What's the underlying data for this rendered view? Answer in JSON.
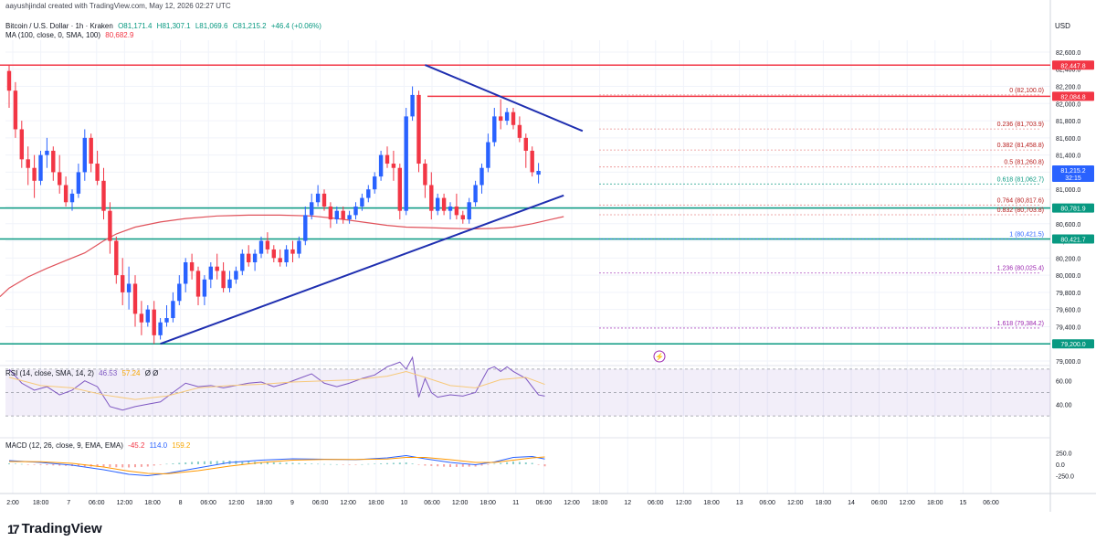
{
  "header": {
    "author_line": "aayushjindal created with TradingView.com, May 12, 2026 02:27 UTC",
    "symbol": "Bitcoin / U.S. Dollar · 1h · Kraken",
    "ohlc": {
      "o": "O81,171.4",
      "h": "H81,307.1",
      "l": "L81,069.6",
      "c": "C81,215.2",
      "chg": "+46.4 (+0.06%)"
    },
    "ma_label": "MA (100, close, 0, SMA, 100)",
    "ma_value": "80,682.9",
    "currency": "USD"
  },
  "indicators": {
    "rsi_label": "RSI (14, close, SMA, 14, 2)",
    "rsi_value": "46.53",
    "rsi_ma": "57.24",
    "rsi_extra": "Ø Ø",
    "macd_label": "MACD (12, 26, close, 9, EMA, EMA)",
    "macd_hist": "-45.2",
    "macd_line": "114.0",
    "macd_signal": "159.2"
  },
  "branding": {
    "logo_text": "TradingView",
    "logo_mark": "17"
  },
  "colors": {
    "bull": "#2962ff",
    "bear": "#f23645",
    "resistance": "#f23645",
    "support": "#089981",
    "trendline": "#1f2fb0",
    "ma": "#e0525b",
    "rsi": "#7e57c2",
    "rsi_ma": "#f7c97a",
    "macd": "#2962ff",
    "signal": "#ff9800",
    "fib": "#9c27b0"
  },
  "chart_data": {
    "type": "candlestick",
    "symbol": "BTCUSD",
    "timeframe": "1h",
    "price_axis": {
      "ticks": [
        79000,
        79200,
        79400,
        79600,
        79800,
        80000,
        80200,
        80400,
        80600,
        80800,
        81000,
        81200,
        81400,
        81600,
        81800,
        82000,
        82200,
        82400,
        82600
      ],
      "labels": [
        "79,000.0",
        "79,200.0",
        "79,400.0",
        "79,600.0",
        "79,800.0",
        "80,000.0",
        "80,200.0",
        "80,400.0",
        "80,600.0",
        "80,800.0",
        "81,000.0",
        "81,200.0",
        "81,400.0",
        "81,600.0",
        "81,800.0",
        "82,000.0",
        "82,200.0",
        "82,400.0",
        "82,600.0"
      ]
    },
    "time_axis": [
      "2:00",
      "18:00",
      "7",
      "06:00",
      "12:00",
      "18:00",
      "8",
      "06:00",
      "12:00",
      "18:00",
      "9",
      "06:00",
      "12:00",
      "18:00",
      "10",
      "06:00",
      "12:00",
      "18:00",
      "11",
      "06:00",
      "12:00",
      "18:00",
      "12",
      "06:00",
      "12:00",
      "18:00",
      "13",
      "06:00",
      "12:00",
      "18:00",
      "14",
      "06:00",
      "12:00",
      "18:00",
      "15",
      "06:00"
    ],
    "horizontal_levels": [
      {
        "label": "82,447.8",
        "value": 82447.8,
        "type": "resistance"
      },
      {
        "label": "82,084.8",
        "value": 82084.8,
        "type": "resistance"
      },
      {
        "label": "80,781.9",
        "value": 80781.9,
        "type": "support"
      },
      {
        "label": "80,421.7",
        "value": 80421.7,
        "type": "support"
      },
      {
        "label": "79,200.0",
        "value": 79200.0,
        "type": "support"
      }
    ],
    "last_price": {
      "value": 81215.2,
      "label": "81,215.2",
      "countdown": "32:15"
    },
    "fib_levels": [
      {
        "ratio": "0",
        "value": 82100.0,
        "label": "0 (82,100.0)"
      },
      {
        "ratio": "0.236",
        "value": 81703.9,
        "label": "0.236 (81,703.9)"
      },
      {
        "ratio": "0.382",
        "value": 81458.8,
        "label": "0.382 (81,458.8)"
      },
      {
        "ratio": "0.5",
        "value": 81260.8,
        "label": "0.5 (81,260.8)"
      },
      {
        "ratio": "0.618",
        "value": 81062.7,
        "label": "0.618 (81,062.7)"
      },
      {
        "ratio": "0.764",
        "value": 80817.6,
        "label": "0.764 (80,817.6)"
      },
      {
        "ratio": "0.832",
        "value": 80703.8,
        "label": "0.832 (80,703.8)"
      },
      {
        "ratio": "1",
        "value": 80421.5,
        "label": "1 (80,421.5)"
      },
      {
        "ratio": "1.236",
        "value": 80025.4,
        "label": "1.236 (80,025.4)"
      },
      {
        "ratio": "1.618",
        "value": 79384.2,
        "label": "1.618 (79,384.2)"
      }
    ],
    "trendlines": [
      {
        "name": "descending",
        "from": {
          "bar": 66,
          "price": 82450
        },
        "to": {
          "bar": 91,
          "price": 81680
        }
      },
      {
        "name": "ascending",
        "from": {
          "bar": 24,
          "price": 79200
        },
        "to": {
          "bar": 88,
          "price": 80930
        }
      }
    ],
    "candles": [
      [
        82380,
        82450,
        81950,
        82150
      ],
      [
        82150,
        82250,
        81600,
        81700
      ],
      [
        81700,
        81800,
        81250,
        81350
      ],
      [
        81350,
        81500,
        81050,
        81250
      ],
      [
        81250,
        81400,
        80900,
        81100
      ],
      [
        81100,
        81450,
        81050,
        81400
      ],
      [
        81400,
        81600,
        81250,
        81450
      ],
      [
        81450,
        81500,
        81100,
        81200
      ],
      [
        81200,
        81400,
        80950,
        81050
      ],
      [
        81050,
        81150,
        80800,
        80850
      ],
      [
        80850,
        81000,
        80750,
        80950
      ],
      [
        80950,
        81300,
        80900,
        81200
      ],
      [
        81200,
        81700,
        81100,
        81600
      ],
      [
        81600,
        81650,
        81200,
        81300
      ],
      [
        81300,
        81450,
        81050,
        81100
      ],
      [
        81100,
        81250,
        80650,
        80750
      ],
      [
        80750,
        80850,
        80250,
        80400
      ],
      [
        80400,
        80450,
        79900,
        80000
      ],
      [
        80000,
        80200,
        79650,
        79800
      ],
      [
        79800,
        80100,
        79600,
        79900
      ],
      [
        79900,
        80000,
        79400,
        79550
      ],
      [
        79550,
        79700,
        79300,
        79450
      ],
      [
        79450,
        79650,
        79400,
        79600
      ],
      [
        79600,
        79700,
        79200,
        79300
      ],
      [
        79300,
        79500,
        79250,
        79450
      ],
      [
        79450,
        79650,
        79400,
        79500
      ],
      [
        79500,
        79800,
        79450,
        79700
      ],
      [
        79700,
        80000,
        79650,
        79900
      ],
      [
        79900,
        80200,
        79800,
        80150
      ],
      [
        80150,
        80250,
        79950,
        80050
      ],
      [
        80050,
        80100,
        79650,
        79750
      ],
      [
        79750,
        80000,
        79650,
        79950
      ],
      [
        79950,
        80150,
        79850,
        80100
      ],
      [
        80100,
        80250,
        79950,
        80050
      ],
      [
        80050,
        80150,
        79800,
        79850
      ],
      [
        79850,
        80050,
        79800,
        79950
      ],
      [
        79950,
        80100,
        79900,
        80050
      ],
      [
        80050,
        80300,
        80000,
        80250
      ],
      [
        80250,
        80350,
        80100,
        80150
      ],
      [
        80150,
        80300,
        80050,
        80250
      ],
      [
        80250,
        80450,
        80200,
        80400
      ],
      [
        80400,
        80500,
        80250,
        80300
      ],
      [
        80300,
        80350,
        80150,
        80200
      ],
      [
        80200,
        80300,
        80100,
        80150
      ],
      [
        80150,
        80350,
        80100,
        80300
      ],
      [
        80300,
        80400,
        80150,
        80250
      ],
      [
        80250,
        80450,
        80200,
        80400
      ],
      [
        80400,
        80800,
        80350,
        80700
      ],
      [
        80700,
        80950,
        80650,
        80850
      ],
      [
        80850,
        81050,
        80800,
        80950
      ],
      [
        80950,
        81000,
        80750,
        80800
      ],
      [
        80800,
        80850,
        80550,
        80650
      ],
      [
        80650,
        80800,
        80600,
        80750
      ],
      [
        80750,
        80800,
        80600,
        80650
      ],
      [
        80650,
        80750,
        80600,
        80700
      ],
      [
        80700,
        80850,
        80650,
        80800
      ],
      [
        80800,
        80950,
        80750,
        80900
      ],
      [
        80900,
        81050,
        80850,
        81000
      ],
      [
        81000,
        81200,
        80950,
        81150
      ],
      [
        81150,
        81450,
        81100,
        81400
      ],
      [
        81400,
        81500,
        81250,
        81300
      ],
      [
        81300,
        81450,
        81100,
        81250
      ],
      [
        81250,
        81300,
        80650,
        80750
      ],
      [
        80750,
        81950,
        80700,
        81850
      ],
      [
        81850,
        82200,
        81800,
        82100
      ],
      [
        82100,
        82150,
        81200,
        81300
      ],
      [
        81300,
        81350,
        80900,
        81050
      ],
      [
        81050,
        81200,
        80650,
        80750
      ],
      [
        80750,
        80950,
        80700,
        80900
      ],
      [
        80900,
        80950,
        80700,
        80750
      ],
      [
        80750,
        80850,
        80650,
        80800
      ],
      [
        80800,
        80950,
        80650,
        80700
      ],
      [
        80700,
        80750,
        80600,
        80650
      ],
      [
        80650,
        80900,
        80600,
        80850
      ],
      [
        80850,
        81100,
        80800,
        81050
      ],
      [
        81050,
        81300,
        80950,
        81250
      ],
      [
        81250,
        81650,
        81200,
        81550
      ],
      [
        81550,
        81950,
        81500,
        81850
      ],
      [
        81850,
        82050,
        81700,
        81800
      ],
      [
        81800,
        81950,
        81750,
        81900
      ],
      [
        81900,
        81950,
        81700,
        81750
      ],
      [
        81750,
        81850,
        81550,
        81600
      ],
      [
        81600,
        81650,
        81250,
        81450
      ],
      [
        81450,
        81500,
        81150,
        81200
      ],
      [
        81171.4,
        81307.1,
        81069.6,
        81215.2
      ]
    ],
    "ma100": [
      [
        0,
        79850
      ],
      [
        3,
        79980
      ],
      [
        6,
        80080
      ],
      [
        9,
        80170
      ],
      [
        12,
        80260
      ],
      [
        15,
        80400
      ],
      [
        17,
        80480
      ],
      [
        20,
        80560
      ],
      [
        24,
        80620
      ],
      [
        28,
        80660
      ],
      [
        33,
        80690
      ],
      [
        38,
        80700
      ],
      [
        43,
        80700
      ],
      [
        48,
        80690
      ],
      [
        52,
        80660
      ],
      [
        56,
        80620
      ],
      [
        60,
        80580
      ],
      [
        63,
        80560
      ],
      [
        66,
        80555
      ],
      [
        70,
        80545
      ],
      [
        74,
        80540
      ],
      [
        77,
        80545
      ],
      [
        80,
        80560
      ],
      [
        83,
        80600
      ],
      [
        86,
        80650
      ],
      [
        88,
        80683
      ]
    ],
    "rsi": {
      "ticks": [
        40,
        60
      ],
      "upper": 70,
      "lower": 30,
      "value": 46.53,
      "ma": 57.24,
      "series": [
        [
          0,
          70
        ],
        [
          2,
          58
        ],
        [
          4,
          52
        ],
        [
          6,
          55
        ],
        [
          8,
          48
        ],
        [
          10,
          52
        ],
        [
          12,
          60
        ],
        [
          14,
          55
        ],
        [
          16,
          38
        ],
        [
          18,
          35
        ],
        [
          20,
          38
        ],
        [
          22,
          40
        ],
        [
          24,
          42
        ],
        [
          26,
          50
        ],
        [
          28,
          58
        ],
        [
          30,
          55
        ],
        [
          32,
          56
        ],
        [
          34,
          54
        ],
        [
          36,
          56
        ],
        [
          38,
          58
        ],
        [
          40,
          59
        ],
        [
          42,
          55
        ],
        [
          44,
          58
        ],
        [
          46,
          62
        ],
        [
          48,
          66
        ],
        [
          50,
          58
        ],
        [
          52,
          55
        ],
        [
          54,
          58
        ],
        [
          56,
          62
        ],
        [
          58,
          65
        ],
        [
          60,
          72
        ],
        [
          62,
          76
        ],
        [
          63,
          70
        ],
        [
          64,
          80
        ],
        [
          65,
          46
        ],
        [
          66,
          62
        ],
        [
          67,
          50
        ],
        [
          68,
          46
        ],
        [
          70,
          48
        ],
        [
          72,
          47
        ],
        [
          74,
          50
        ],
        [
          76,
          70
        ],
        [
          77,
          72
        ],
        [
          78,
          68
        ],
        [
          79,
          72
        ],
        [
          80,
          68
        ],
        [
          82,
          62
        ],
        [
          84,
          48
        ],
        [
          85,
          47
        ]
      ],
      "ma_series": [
        [
          0,
          63
        ],
        [
          5,
          56
        ],
        [
          10,
          54
        ],
        [
          15,
          48
        ],
        [
          20,
          44
        ],
        [
          25,
          47
        ],
        [
          30,
          54
        ],
        [
          35,
          56
        ],
        [
          40,
          57
        ],
        [
          45,
          59
        ],
        [
          50,
          60
        ],
        [
          55,
          61
        ],
        [
          60,
          64
        ],
        [
          63,
          68
        ],
        [
          66,
          63
        ],
        [
          70,
          56
        ],
        [
          74,
          54
        ],
        [
          78,
          61
        ],
        [
          82,
          63
        ],
        [
          85,
          57
        ]
      ]
    },
    "macd": {
      "ticks": [
        -250,
        0,
        250
      ],
      "labels": [
        "-250.0",
        "0.0",
        "250.0"
      ],
      "macd_series": [
        [
          0,
          80
        ],
        [
          5,
          40
        ],
        [
          10,
          -20
        ],
        [
          15,
          -120
        ],
        [
          19,
          -220
        ],
        [
          22,
          -250
        ],
        [
          25,
          -200
        ],
        [
          30,
          -80
        ],
        [
          35,
          40
        ],
        [
          40,
          90
        ],
        [
          45,
          120
        ],
        [
          50,
          110
        ],
        [
          55,
          100
        ],
        [
          60,
          140
        ],
        [
          63,
          190
        ],
        [
          66,
          120
        ],
        [
          70,
          40
        ],
        [
          74,
          -10
        ],
        [
          77,
          50
        ],
        [
          80,
          150
        ],
        [
          83,
          170
        ],
        [
          85,
          114
        ]
      ],
      "signal_series": [
        [
          0,
          60
        ],
        [
          5,
          55
        ],
        [
          10,
          20
        ],
        [
          15,
          -60
        ],
        [
          19,
          -150
        ],
        [
          22,
          -200
        ],
        [
          25,
          -210
        ],
        [
          30,
          -140
        ],
        [
          35,
          -40
        ],
        [
          40,
          40
        ],
        [
          45,
          90
        ],
        [
          50,
          105
        ],
        [
          55,
          105
        ],
        [
          60,
          115
        ],
        [
          63,
          150
        ],
        [
          66,
          150
        ],
        [
          70,
          100
        ],
        [
          74,
          40
        ],
        [
          77,
          40
        ],
        [
          80,
          90
        ],
        [
          83,
          140
        ],
        [
          85,
          159
        ]
      ]
    }
  }
}
